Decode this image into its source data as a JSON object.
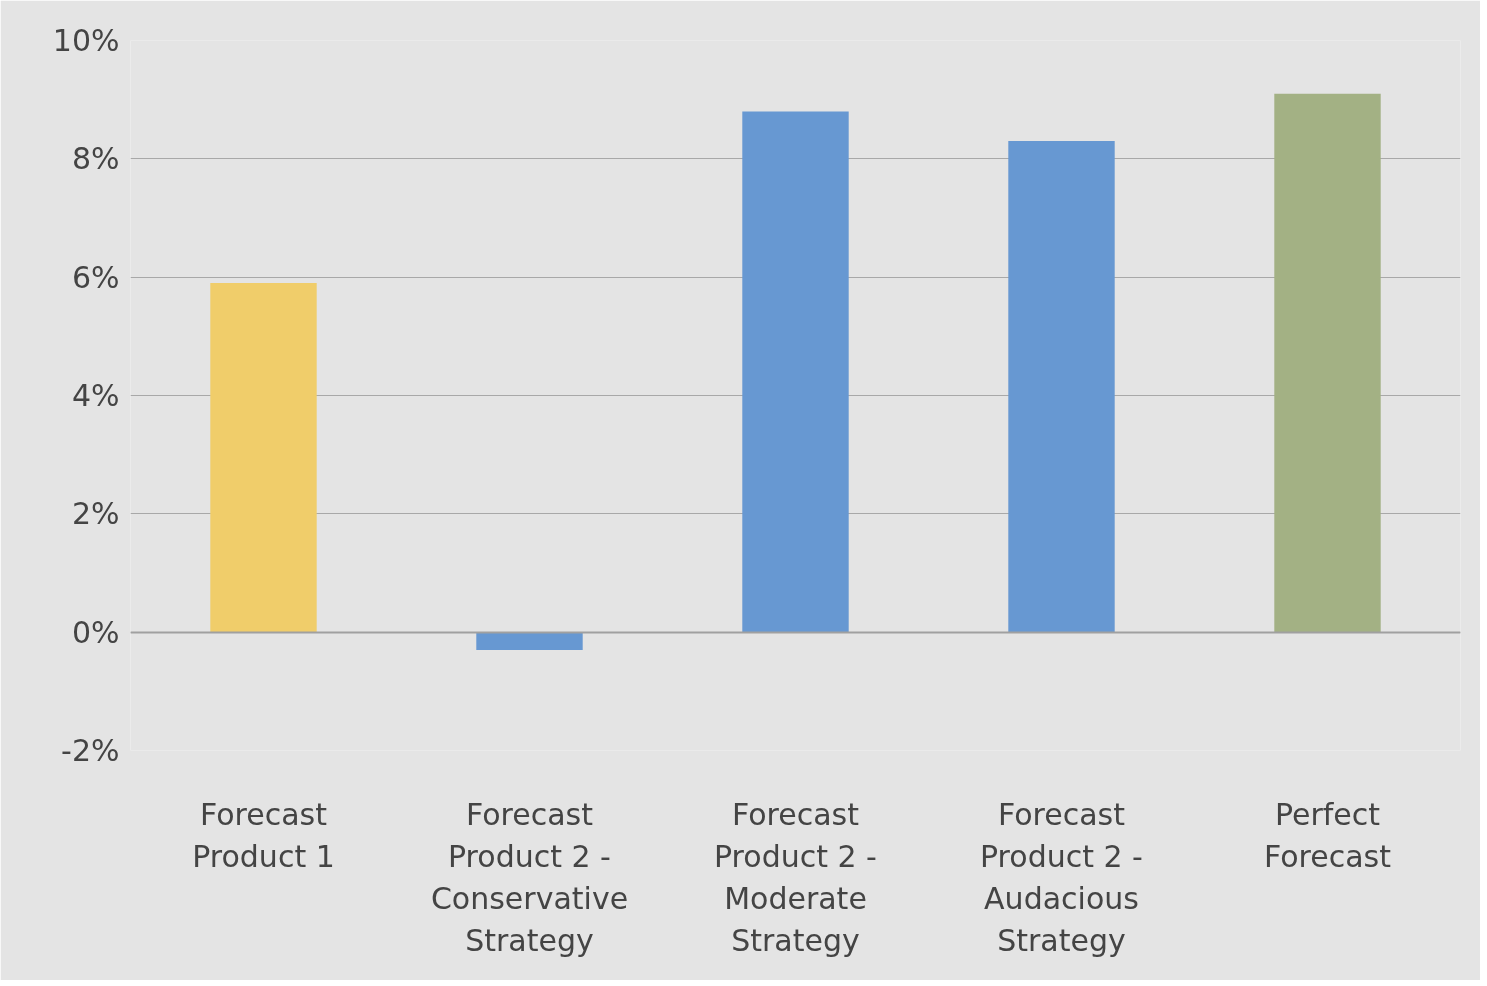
{
  "chart_data": {
    "type": "bar",
    "categories": [
      "Forecast Product 1",
      "Forecast Product 2 - Conservative Strategy",
      "Forecast Product 2 - Moderate Strategy",
      "Forecast Product 2 - Audacious Strategy",
      "Perfect Forecast"
    ],
    "values": [
      5.9,
      -0.3,
      8.8,
      8.3,
      9.1
    ],
    "colors": [
      "#f0cd6a",
      "#6798d2",
      "#6798d2",
      "#6798d2",
      "#a3b184"
    ],
    "ylim": [
      -2,
      10
    ],
    "yticks": [
      {
        "value": -2,
        "label": "-2%"
      },
      {
        "value": 0,
        "label": "0%"
      },
      {
        "value": 2,
        "label": "2%"
      },
      {
        "value": 4,
        "label": "4%"
      },
      {
        "value": 6,
        "label": "6%"
      },
      {
        "value": 8,
        "label": "8%"
      },
      {
        "value": 10,
        "label": "10%"
      }
    ],
    "grid": "y"
  }
}
